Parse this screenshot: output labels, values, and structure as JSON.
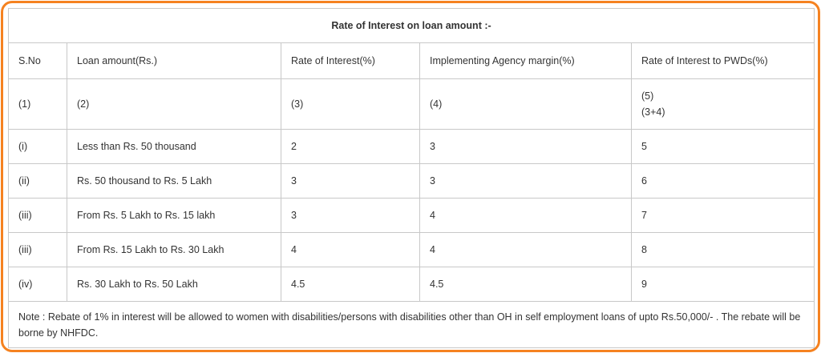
{
  "table": {
    "title": "Rate of Interest on loan amount :-",
    "columns": [
      "S.No",
      "Loan amount(Rs.)",
      "Rate of Interest(%)",
      "Implementing Agency margin(%)",
      "Rate of Interest to PWDs(%)"
    ],
    "index_row": [
      "(1)",
      "(2)",
      "(3)",
      "(4)",
      [
        "(5)",
        "(3+4)"
      ]
    ],
    "rows": [
      [
        "(i)",
        "Less than Rs. 50 thousand",
        2,
        3,
        5
      ],
      [
        "(ii)",
        "Rs. 50 thousand to Rs. 5 Lakh",
        3,
        3,
        6
      ],
      [
        "(iii)",
        "From Rs. 5 Lakh to Rs. 15 lakh",
        3,
        4,
        7
      ],
      [
        "(iii)",
        "From Rs. 15 Lakh to Rs. 30 Lakh",
        4,
        4,
        8
      ],
      [
        "(iv)",
        "Rs. 30 Lakh to Rs. 50 Lakh",
        4.5,
        4.5,
        9
      ]
    ],
    "note": "Note : Rebate of 1% in interest will be allowed to women with disabilities/persons with disabilities other than OH in self employment loans of upto Rs.50,000/- . The rebate will be borne by NHFDC."
  }
}
